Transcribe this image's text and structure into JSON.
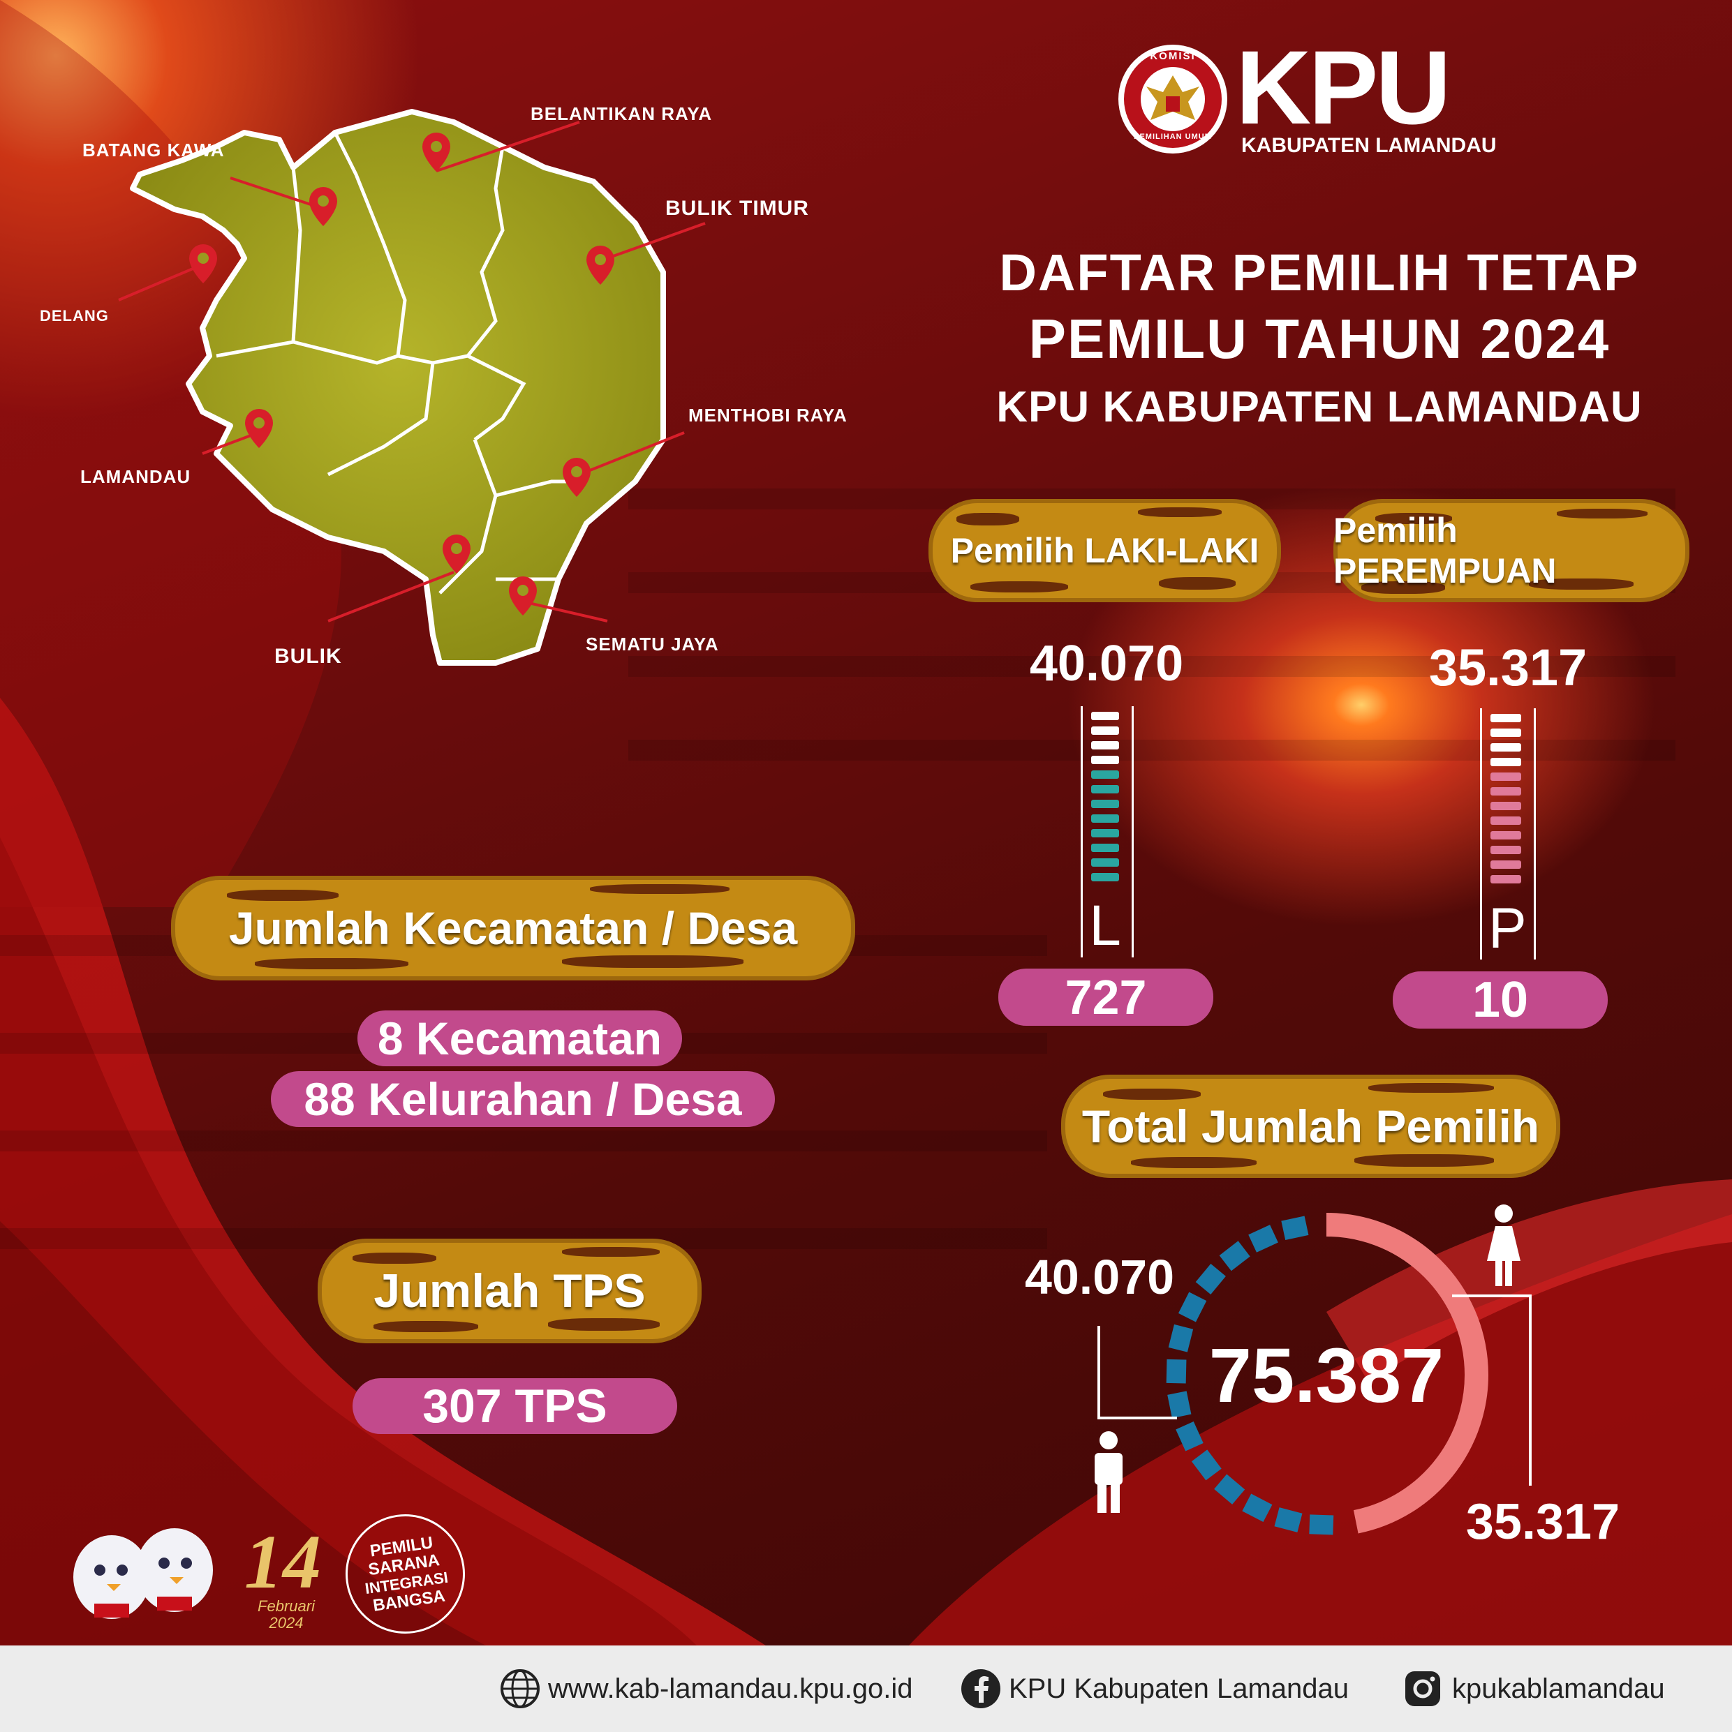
{
  "header": {
    "logo_ring_top": "KOMISI",
    "logo_ring_bottom": "PEMILIHAN UMUM",
    "brand": "KPU",
    "brand_sub": "KABUPATEN LAMANDAU"
  },
  "title": {
    "line1": "DAFTAR PEMILIH TETAP",
    "line2": "PEMILU TAHUN 2024",
    "line3": "KPU KABUPATEN LAMANDAU"
  },
  "map": {
    "districts": [
      "BELANTIKAN RAYA",
      "BATANG KAWA",
      "BULIK TIMUR",
      "DELANG",
      "MENTHOBI RAYA",
      "LAMANDAU",
      "BULIK",
      "SEMATU JAYA"
    ]
  },
  "voters": {
    "male": {
      "title": "Pemilih LAKI-LAKI",
      "count": "40.070",
      "letter": "L",
      "badge": "727",
      "color": "#2aa6a0"
    },
    "female": {
      "title": "Pemilih PEREMPUAN",
      "count": "35.317",
      "letter": "P",
      "badge": "10",
      "color": "#e07a9a"
    }
  },
  "region": {
    "title": "Jumlah Kecamatan / Desa",
    "kecamatan": "8 Kecamatan",
    "desa": "88 Kelurahan /  Desa"
  },
  "tps": {
    "title": "Jumlah TPS",
    "value": "307 TPS"
  },
  "total": {
    "title": "Total Jumlah Pemilih",
    "value": "75.387",
    "male": "40.070",
    "female": "35.317",
    "male_letter": "L",
    "female_share": 0.4685,
    "male_share": 0.5315,
    "male_color": "#1a79a8",
    "female_color": "#ef7b7b"
  },
  "badges": {
    "date_number": "14",
    "date_text": "Februari 2024",
    "slogan": [
      "PEMILU",
      "SARANA",
      "INTEGRASI",
      "BANGSA"
    ]
  },
  "footer": {
    "website": "www.kab-lamandau.kpu.go.id",
    "facebook": "KPU Kabupaten Lamandau",
    "instagram": "kpukablamandau"
  }
}
